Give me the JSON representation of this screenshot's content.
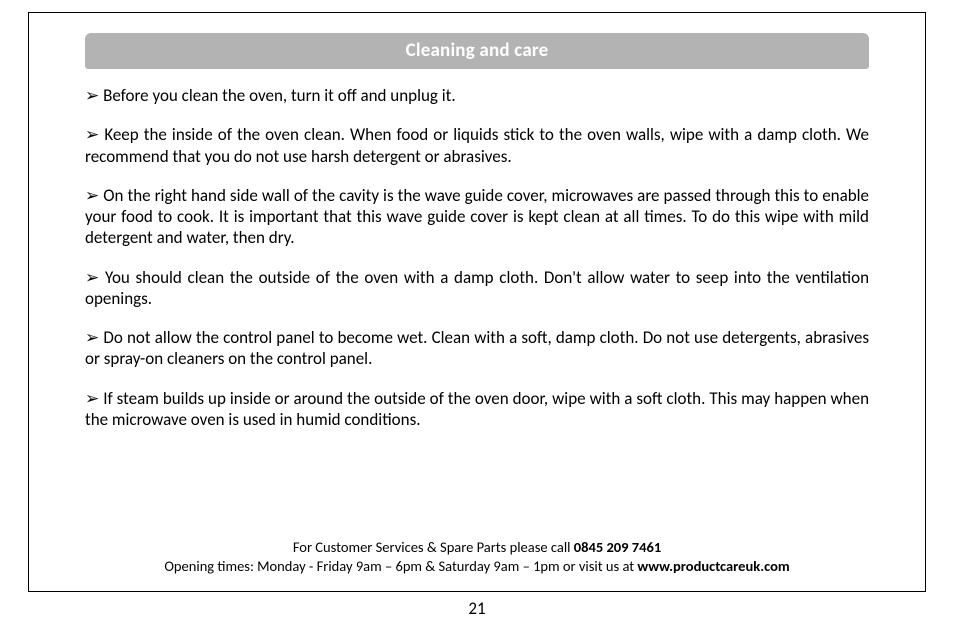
{
  "header": {
    "title": "Cleaning and care"
  },
  "bullets": {
    "glyph": "➢",
    "items": [
      "Before you clean the oven, turn it off and unplug it.",
      "Keep the inside of the oven clean. When food or liquids stick to the oven walls, wipe with a damp cloth. We recommend that you do not use harsh detergent or abrasives.",
      "On the right hand side wall of the cavity is the wave guide cover, microwaves are passed through this to enable your food to cook. It is important that this wave guide cover is kept clean at all times. To do this wipe with mild detergent and water, then dry.",
      "You should clean the outside of the oven with a damp cloth. Don't allow water to seep into the ventilation openings.",
      "Do not allow the control panel to become wet. Clean with a soft, damp cloth. Do not use detergents, abrasives or spray-on cleaners on the control panel.",
      "If steam builds up inside or around the outside of the oven door, wipe with a soft cloth. This may happen when the microwave oven is used in humid conditions."
    ]
  },
  "footer": {
    "line1_pre": "For Customer Services & Spare Parts please call ",
    "phone": "0845 209 7461",
    "line2_pre": "Opening times: Monday - Friday  9am – 6pm & Saturday 9am – 1pm or visit us at ",
    "site": "www.productcareuk.com"
  },
  "page_number": "21"
}
